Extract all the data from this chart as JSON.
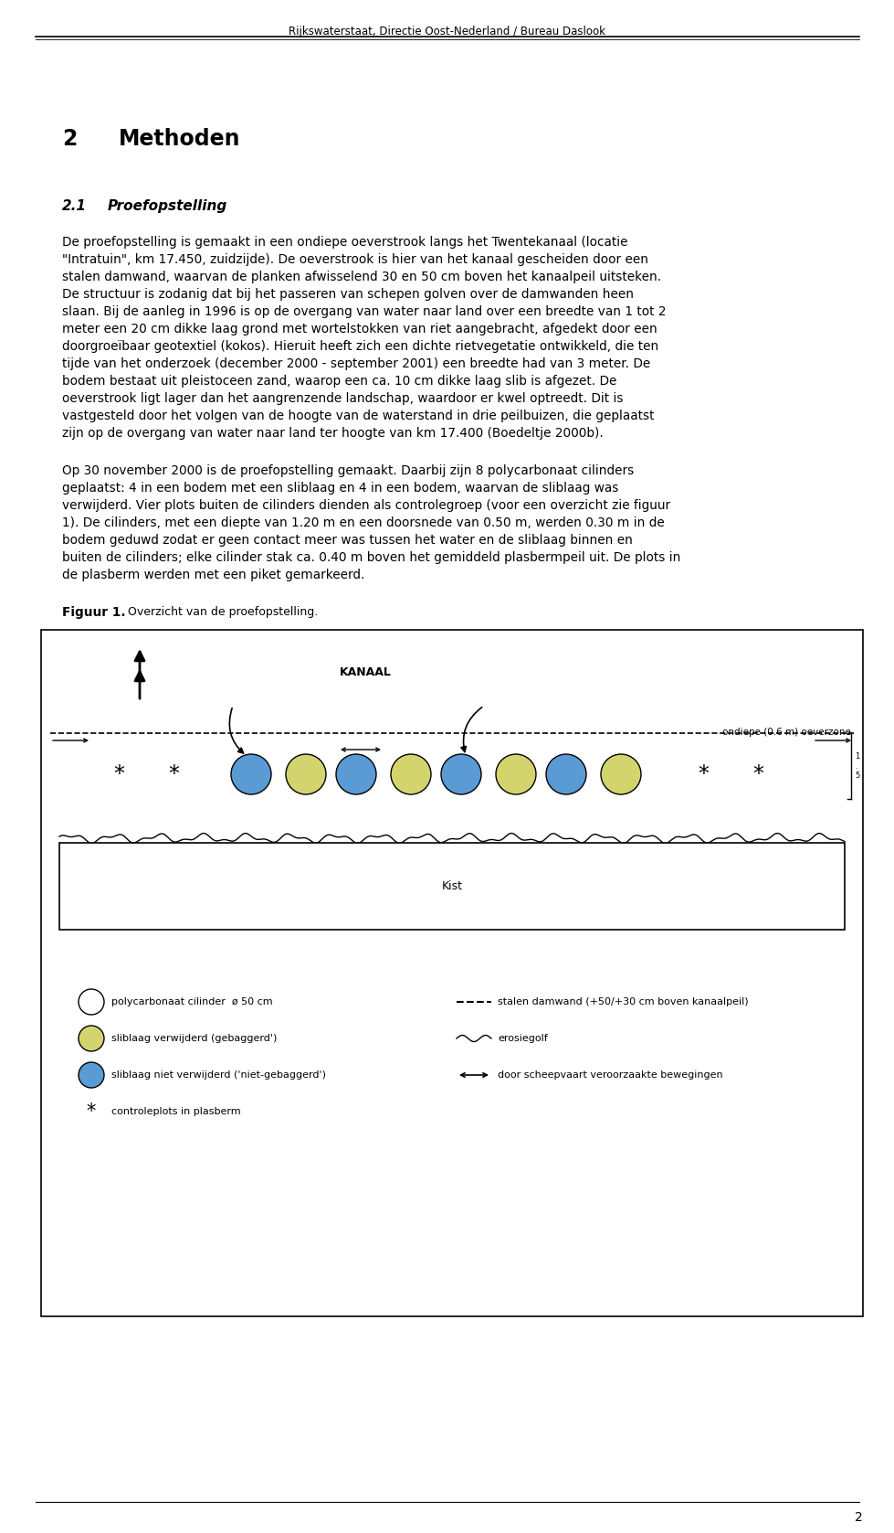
{
  "header_text": "Rijkswaterstaat, Directie Oost-Nederland / Bureau Daslook",
  "page_number": "2",
  "section_title": "2",
  "section_title2": "Methoden",
  "subsection_title": "2.1    Proefopstelling",
  "body_text_1": "De proefopstelling is gemaakt in een ondiepe oeverstrook langs het Twentekanaal (locatie\n\"Intratuin\", km 17.450, zuidzijde). De oeverstrook is hier van het kanaal gescheiden door een\nstalen damwand, waarvan de planken afwisselend 30 en 50 cm boven het kanaalpeil uitsteken.\nDe structuur is zodanig dat bij het passeren van schepen golven over de damwanden heen\nslaan. Bij de aanleg in 1996 is op de overgang van water naar land over een breedte van 1 tot 2\nmeter een 20 cm dikke laag grond met wortelstokken van riet aangebracht, afgedekt door een\ndoorgroeïbaar geotextiel (kokos). Hieruit heeft zich een dichte rietvegetatie ontwikkeld, die ten\ntijde van het onderzoek (december 2000 - september 2001) een breedte had van 3 meter. De\nbodem bestaat uit pleistoceen zand, waarop een ca. 10 cm dikke laag slib is afgezet. De\noeverstrook ligt lager dan het aangrenzende landschap, waardoor er kwel optreedt. Dit is\nvastgesteld door het volgen van de hoogte van de waterstand in drie peilbuizen, die geplaatst\nzijn op de overgang van water naar land ter hoogte van km 17.400 (Boedeltje 2000b).",
  "body_text_2": "Op 30 november 2000 is de proefopstelling gemaakt. Daarbij zijn 8 polycarbonaat cilinders\ngeplaatst: 4 in een bodem met een sliblaag en 4 in een bodem, waarvan de sliblaag was\nverwijderd. Vier plots buiten de cilinders dienden als controlegroep (voor een overzicht zie figuur\n1). De cilinders, met een diepte van 1.20 m en een doorsnede van 0.50 m, werden 0.30 m in de\nbodem geduwd zodat er geen contact meer was tussen het water en de sliblaag binnen en\nbuiten de cilinders; elke cilinder stak ca. 0.40 m boven het gemiddeld plasbermpeil uit. De plots in\nde plasberm werden met een piket gemarkeerd.",
  "kanaal_label": "KANAAL",
  "ondiepe_label": "ondiepe (0.6 m) oeverzone",
  "kist_label": "Kist",
  "legend_items": [
    "polycarbonaat cilinder  ø 50 cm",
    "sliblaag verwijderd (gebaggerd')",
    "sliblaag niet verwijderd ('niet-gebaggerd')",
    "controleplots in plasberm"
  ],
  "legend_items_right": [
    "stalen damwand (+50/+30 cm boven kanaalpeil)",
    "erosiegolf",
    "door scheepvaart veroorzaakte bewegingen"
  ],
  "background_color": "#ffffff",
  "text_color": "#000000",
  "circle_white": "#ffffff",
  "circle_yellow": "#d4d46e",
  "circle_blue": "#5b9bd5"
}
